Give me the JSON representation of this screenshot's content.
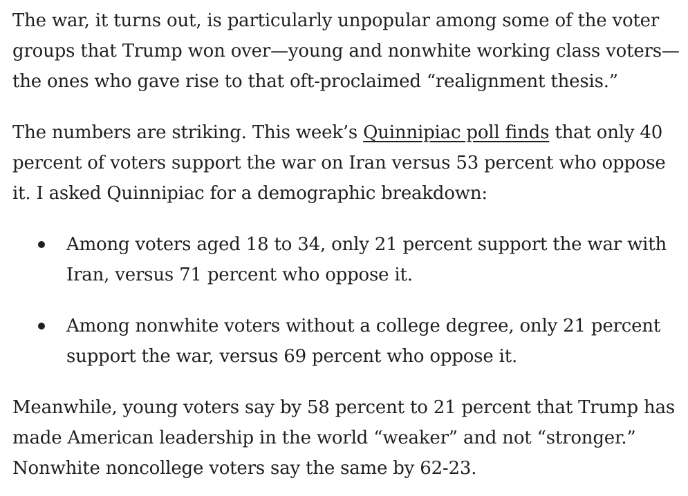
{
  "article": {
    "paragraph1": "The war, it turns out, is particularly unpopular among some of the voter groups that Trump won over—young and nonwhite working class voters—the ones who gave rise to that oft-proclaimed “realignment thesis.”",
    "paragraph2": {
      "before_link": "The numbers are striking. This week’s ",
      "link_text": "Quinnipiac poll finds",
      "after_link": " that only 40 percent of voters support the war on Iran versus 53 percent who oppose it. I asked Quinnipiac for a demographic breakdown:"
    },
    "bullets": [
      "Among voters aged 18 to 34, only 21 percent support the war with Iran, versus 71 percent who oppose it.",
      "Among nonwhite voters without a college degree, only 21 percent support the war, versus 69 percent who oppose it."
    ],
    "paragraph3": "Meanwhile, young voters say by 58 percent to 21 percent that Trump has made American leadership in the world “weaker” and not “stronger.” Nonwhite noncollege voters say the same by 62-23."
  }
}
